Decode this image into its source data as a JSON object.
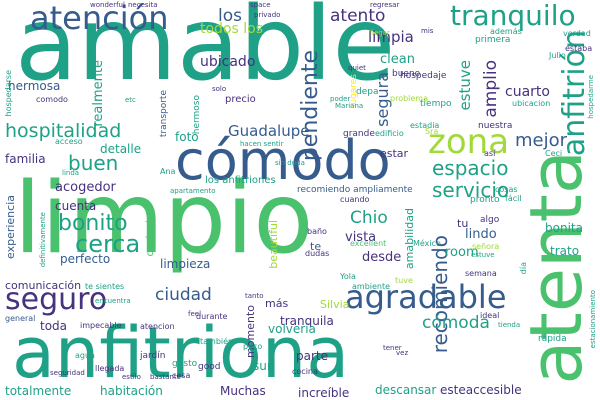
{
  "palette": {
    "purple": "#46327e",
    "blue": "#365c8d",
    "steel": "#277f8e",
    "teal": "#1fa187",
    "green": "#4ac16d",
    "lime": "#a0da39",
    "yellow": "#fde725"
  },
  "words": [
    {
      "text": "amable",
      "color": "teal"
    },
    {
      "text": "limpio",
      "color": "green"
    },
    {
      "text": "anfitriona",
      "color": "teal"
    },
    {
      "text": "atenta",
      "color": "green"
    },
    {
      "text": "cómodo",
      "color": "blue"
    },
    {
      "text": "atención",
      "color": "blue"
    },
    {
      "text": "tranquilo",
      "color": "teal"
    },
    {
      "text": "anfitrión",
      "color": "teal"
    },
    {
      "text": "zona",
      "color": "lime"
    },
    {
      "text": "agradable",
      "color": "blue"
    },
    {
      "text": "seguro",
      "color": "purple"
    },
    {
      "text": "hospitalidad",
      "color": "teal"
    },
    {
      "text": "espacio",
      "color": "teal"
    },
    {
      "text": "servicio",
      "color": "teal"
    },
    {
      "text": "mejor",
      "color": "blue"
    },
    {
      "text": "bonito",
      "color": "teal"
    },
    {
      "text": "cerca",
      "color": "teal"
    },
    {
      "text": "recomiendo",
      "color": "blue"
    },
    {
      "text": "buen",
      "color": "teal"
    },
    {
      "text": "atento",
      "color": "purple"
    },
    {
      "text": "los",
      "color": "blue"
    },
    {
      "text": "pendiente",
      "color": "blue"
    },
    {
      "text": "ciudad",
      "color": "blue"
    },
    {
      "text": "cómoda",
      "color": "teal"
    },
    {
      "text": "Chio",
      "color": "teal"
    },
    {
      "text": "Guadalupe",
      "color": "blue"
    },
    {
      "text": "limpia",
      "color": "purple"
    },
    {
      "text": "ubicado",
      "color": "purple"
    },
    {
      "text": "segura",
      "color": "blue"
    },
    {
      "text": "amplio",
      "color": "purple"
    },
    {
      "text": "estuve",
      "color": "teal"
    },
    {
      "text": "hermosa",
      "color": "blue"
    },
    {
      "text": "realmente",
      "color": "teal"
    },
    {
      "text": "clean",
      "color": "teal"
    },
    {
      "text": "cuarto",
      "color": "purple"
    },
    {
      "text": "todos los",
      "color": "lime"
    },
    {
      "text": "foto",
      "color": "teal"
    },
    {
      "text": "detalle",
      "color": "teal"
    },
    {
      "text": "familia",
      "color": "purple"
    },
    {
      "text": "acogedor",
      "color": "purple"
    },
    {
      "text": "cuenta",
      "color": "purple"
    },
    {
      "text": "perfecto",
      "color": "blue"
    },
    {
      "text": "experiencia",
      "color": "blue"
    },
    {
      "text": "limpieza",
      "color": "blue"
    },
    {
      "text": "vista",
      "color": "purple"
    },
    {
      "text": "desde",
      "color": "purple"
    },
    {
      "text": "lindo",
      "color": "blue"
    },
    {
      "text": "bonita",
      "color": "teal"
    },
    {
      "text": "trato",
      "color": "teal"
    },
    {
      "text": "room",
      "color": "teal"
    },
    {
      "text": "comunicación",
      "color": "purple"
    },
    {
      "text": "toda",
      "color": "purple"
    },
    {
      "text": "tranquila",
      "color": "purple"
    },
    {
      "text": "volvería",
      "color": "teal"
    },
    {
      "text": "parte",
      "color": "purple"
    },
    {
      "text": "sur",
      "color": "teal"
    },
    {
      "text": "totalmente",
      "color": "teal"
    },
    {
      "text": "habitación",
      "color": "teal"
    },
    {
      "text": "Muchas",
      "color": "purple"
    },
    {
      "text": "increíble",
      "color": "purple"
    },
    {
      "text": "descansar",
      "color": "teal"
    },
    {
      "text": "esteaccesible",
      "color": "purple"
    },
    {
      "text": "estar",
      "color": "purple"
    },
    {
      "text": "tu",
      "color": "purple"
    },
    {
      "text": "te",
      "color": "blue"
    },
    {
      "text": "amabilidad",
      "color": "teal"
    },
    {
      "text": "beautiful",
      "color": "lime"
    },
    {
      "text": "cualquier",
      "color": "green"
    },
    {
      "text": "momento",
      "color": "purple"
    },
    {
      "text": "más",
      "color": "purple"
    },
    {
      "text": "Silvia",
      "color": "lime"
    },
    {
      "text": "los anfitriones",
      "color": "teal"
    },
    {
      "text": "recomiendo ampliamente",
      "color": "blue"
    },
    {
      "text": "hospedaje",
      "color": "purple"
    },
    {
      "text": "precio",
      "color": "purple"
    },
    {
      "text": "bueno",
      "color": "purple"
    },
    {
      "text": "nuestra",
      "color": "purple"
    },
    {
      "text": "transporte",
      "color": "blue"
    },
    {
      "text": "hermoso",
      "color": "teal"
    },
    {
      "text": "comodo",
      "color": "purple"
    },
    {
      "text": "hospedarse",
      "color": "teal"
    },
    {
      "text": "Julio",
      "color": "teal"
    },
    {
      "text": "lugares",
      "color": "yellow"
    },
    {
      "text": "depa",
      "color": "teal"
    },
    {
      "text": "problema",
      "color": "lime"
    },
    {
      "text": "tiempo",
      "color": "teal"
    },
    {
      "text": "ubicacion",
      "color": "teal"
    },
    {
      "text": "primera",
      "color": "teal"
    },
    {
      "text": "estaba",
      "color": "purple"
    },
    {
      "text": "grande",
      "color": "purple"
    },
    {
      "text": "estadia",
      "color": "teal"
    },
    {
      "text": "verdad",
      "color": "teal"
    },
    {
      "text": "además",
      "color": "teal"
    },
    {
      "text": "cosas",
      "color": "teal"
    },
    {
      "text": "pronto",
      "color": "teal"
    },
    {
      "text": "algo",
      "color": "purple"
    },
    {
      "text": "fácil",
      "color": "teal"
    },
    {
      "text": "señora",
      "color": "lime"
    },
    {
      "text": "excellent",
      "color": "green"
    },
    {
      "text": "México",
      "color": "teal"
    },
    {
      "text": "estuve",
      "color": "teal"
    },
    {
      "text": "semana",
      "color": "purple"
    },
    {
      "text": "tuve",
      "color": "lime"
    },
    {
      "text": "ideal",
      "color": "purple"
    },
    {
      "text": "tienda",
      "color": "teal"
    },
    {
      "text": "rápida",
      "color": "teal"
    },
    {
      "text": "gusto",
      "color": "teal"
    },
    {
      "text": "cosa",
      "color": "purple"
    },
    {
      "text": "good",
      "color": "purple"
    },
    {
      "text": "cocina",
      "color": "purple"
    },
    {
      "text": "poco",
      "color": "teal"
    },
    {
      "text": "jardín",
      "color": "purple"
    },
    {
      "text": "agua",
      "color": "teal"
    },
    {
      "text": "llegada",
      "color": "purple"
    },
    {
      "text": "seguridad",
      "color": "purple"
    },
    {
      "text": "atencion",
      "color": "purple"
    },
    {
      "text": "impecable",
      "color": "purple"
    },
    {
      "text": "general",
      "color": "blue"
    },
    {
      "text": "durante",
      "color": "purple"
    },
    {
      "text": "tanto",
      "color": "purple"
    },
    {
      "text": "ambiente",
      "color": "teal"
    },
    {
      "text": "te sientes",
      "color": "teal"
    },
    {
      "text": "Yola",
      "color": "teal"
    },
    {
      "text": "dudas",
      "color": "purple"
    },
    {
      "text": "baño",
      "color": "purple"
    },
    {
      "text": "cuando",
      "color": "purple"
    },
    {
      "text": "Ana",
      "color": "teal"
    },
    {
      "text": "apartamento",
      "color": "teal"
    },
    {
      "text": "sin duda",
      "color": "teal"
    },
    {
      "text": "Sra",
      "color": "lime"
    },
    {
      "text": "hacen sentir",
      "color": "teal"
    },
    {
      "text": "edificio",
      "color": "teal"
    },
    {
      "text": "acceso",
      "color": "teal"
    },
    {
      "text": "linda",
      "color": "teal"
    },
    {
      "text": "wonderful",
      "color": "purple"
    },
    {
      "text": "necesita",
      "color": "purple"
    },
    {
      "text": "space",
      "color": "purple"
    },
    {
      "text": "regresar",
      "color": "purple"
    },
    {
      "text": "privado",
      "color": "purple"
    },
    {
      "text": "solo",
      "color": "purple"
    },
    {
      "text": "quiet",
      "color": "purple"
    },
    {
      "text": "llegar",
      "color": "lime"
    },
    {
      "text": "mis",
      "color": "purple"
    },
    {
      "text": "etc",
      "color": "teal"
    },
    {
      "text": "poder",
      "color": "teal"
    },
    {
      "text": "Mariana",
      "color": "teal"
    },
    {
      "text": "así",
      "color": "purple"
    },
    {
      "text": "bastante",
      "color": "purple"
    },
    {
      "text": "estilo",
      "color": "purple"
    },
    {
      "text": "tener",
      "color": "purple"
    },
    {
      "text": "vez",
      "color": "purple"
    },
    {
      "text": "también",
      "color": "teal"
    },
    {
      "text": "feel",
      "color": "purple"
    },
    {
      "text": "día",
      "color": "teal"
    },
    {
      "text": "hospedarme",
      "color": "teal"
    },
    {
      "text": "Ceci",
      "color": "teal"
    },
    {
      "text": "encuentra",
      "color": "teal"
    },
    {
      "text": "definitivamente",
      "color": "teal"
    },
    {
      "text": "estacionamiento",
      "color": "teal"
    }
  ]
}
